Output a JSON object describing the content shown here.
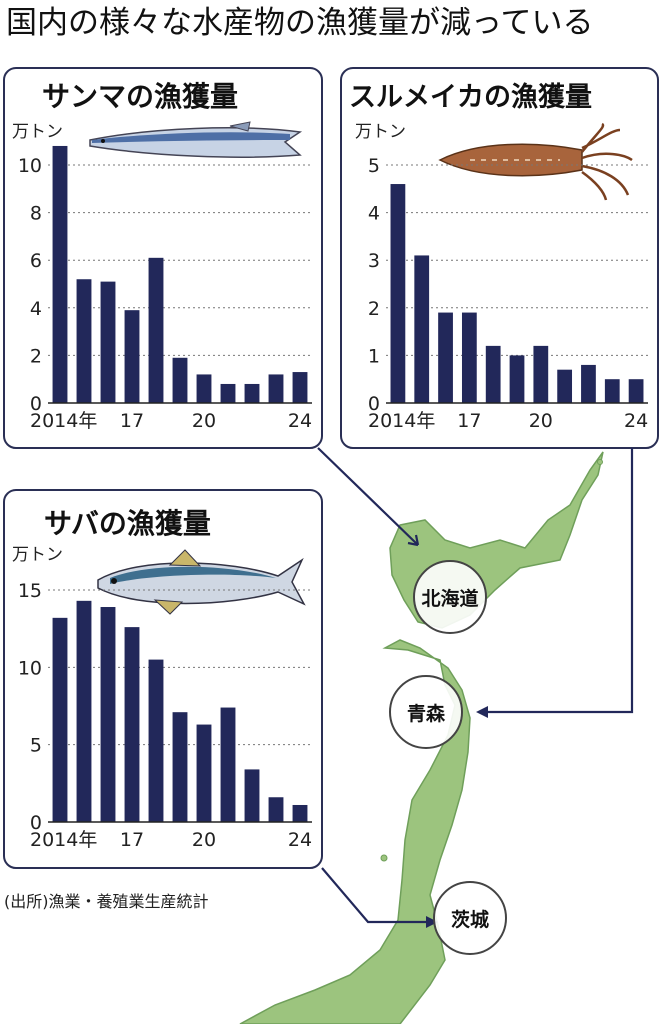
{
  "headline": "国内の様々な水産物の漁獲量が減っている",
  "source": "(出所)漁業・養殖業生産統計",
  "prefectures": [
    "北海道",
    "青森",
    "茨城"
  ],
  "colors": {
    "bar": "#22285a",
    "panel_border": "#2a2f55",
    "land": "#9cc47e",
    "land_dark": "#6f9f5a",
    "arrow": "#22285a"
  },
  "chart_data": [
    {
      "type": "bar",
      "title": "サンマの漁獲量",
      "ylabel": "万トン",
      "x": [
        2014,
        2015,
        2016,
        2017,
        2018,
        2019,
        2020,
        2021,
        2022,
        2023,
        2024
      ],
      "x_tick_labels": [
        "2014年",
        "17",
        "20",
        "24"
      ],
      "values": [
        10.8,
        5.2,
        5.1,
        3.9,
        6.1,
        1.9,
        1.2,
        0.8,
        0.8,
        1.2,
        1.3
      ],
      "ylim": [
        0,
        10
      ],
      "yticks": [
        0,
        2,
        4,
        6,
        8,
        10
      ],
      "grid": true,
      "icon": "saury-icon"
    },
    {
      "type": "bar",
      "title": "スルメイカの漁獲量",
      "ylabel": "万トン",
      "x": [
        2014,
        2015,
        2016,
        2017,
        2018,
        2019,
        2020,
        2021,
        2022,
        2023,
        2024
      ],
      "x_tick_labels": [
        "2014年",
        "17",
        "20",
        "24"
      ],
      "values": [
        4.6,
        3.1,
        1.9,
        1.9,
        1.2,
        1.0,
        1.2,
        0.7,
        0.8,
        0.5,
        0.5
      ],
      "ylim": [
        0,
        5
      ],
      "yticks": [
        0,
        1,
        2,
        3,
        4,
        5
      ],
      "grid": true,
      "icon": "squid-icon"
    },
    {
      "type": "bar",
      "title": "サバの漁獲量",
      "ylabel": "万トン",
      "x": [
        2014,
        2015,
        2016,
        2017,
        2018,
        2019,
        2020,
        2021,
        2022,
        2023,
        2024
      ],
      "x_tick_labels": [
        "2014年",
        "17",
        "20",
        "24"
      ],
      "values": [
        13.2,
        14.3,
        13.9,
        12.6,
        10.5,
        7.1,
        6.3,
        7.4,
        3.4,
        1.6,
        1.1
      ],
      "ylim": [
        0,
        15
      ],
      "yticks": [
        0,
        5,
        10,
        15
      ],
      "grid": true,
      "icon": "mackerel-icon"
    }
  ]
}
